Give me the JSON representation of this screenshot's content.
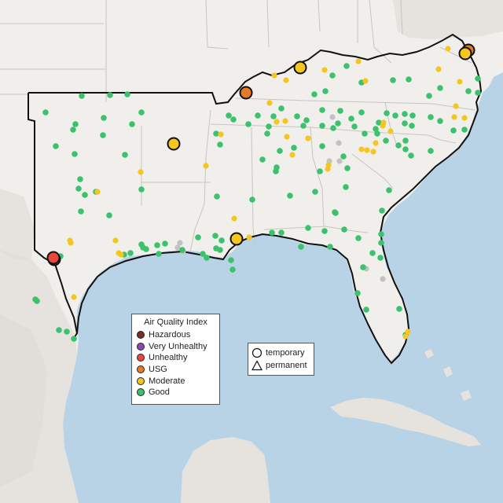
{
  "map": {
    "colors": {
      "ocean": "#b9d3e6",
      "land": "#f1efec",
      "foreign_land": "#e6e3df",
      "terrain": "#dcd8d2",
      "state_line": "#c7c4c0",
      "region_line": "#111111"
    }
  },
  "legend": {
    "title": "Air Quality Index",
    "categories": [
      {
        "label": "Hazardous",
        "color": "#7e2d24"
      },
      {
        "label": "Very Unhealthy",
        "color": "#8a4bab"
      },
      {
        "label": "Unhealthy",
        "color": "#e8473a"
      },
      {
        "label": "USG",
        "color": "#e67b25"
      },
      {
        "label": "Moderate",
        "color": "#f4c61f"
      },
      {
        "label": "Good",
        "color": "#3cc16c"
      }
    ],
    "types": [
      {
        "label": "temporary",
        "icon": "circle-icon"
      },
      {
        "label": "permanent",
        "icon": "triangle-icon"
      }
    ]
  },
  "monitors": {
    "good_color": "#3cc16c",
    "moderate_color": "#f4c61f",
    "no_data_color": "#c2c2c2",
    "large": [
      {
        "category": "Unhealthy",
        "color": "#e8473a"
      },
      {
        "category": "Unhealthy",
        "color": "#e8473a"
      },
      {
        "category": "Moderate",
        "color": "#f4c61f"
      },
      {
        "category": "USG",
        "color": "#e67b25"
      },
      {
        "category": "Moderate",
        "color": "#f4c61f"
      },
      {
        "category": "Moderate",
        "color": "#f4c61f"
      },
      {
        "category": "USG",
        "color": "#e67b25"
      },
      {
        "category": "Moderate",
        "color": "#f4c61f"
      }
    ]
  }
}
